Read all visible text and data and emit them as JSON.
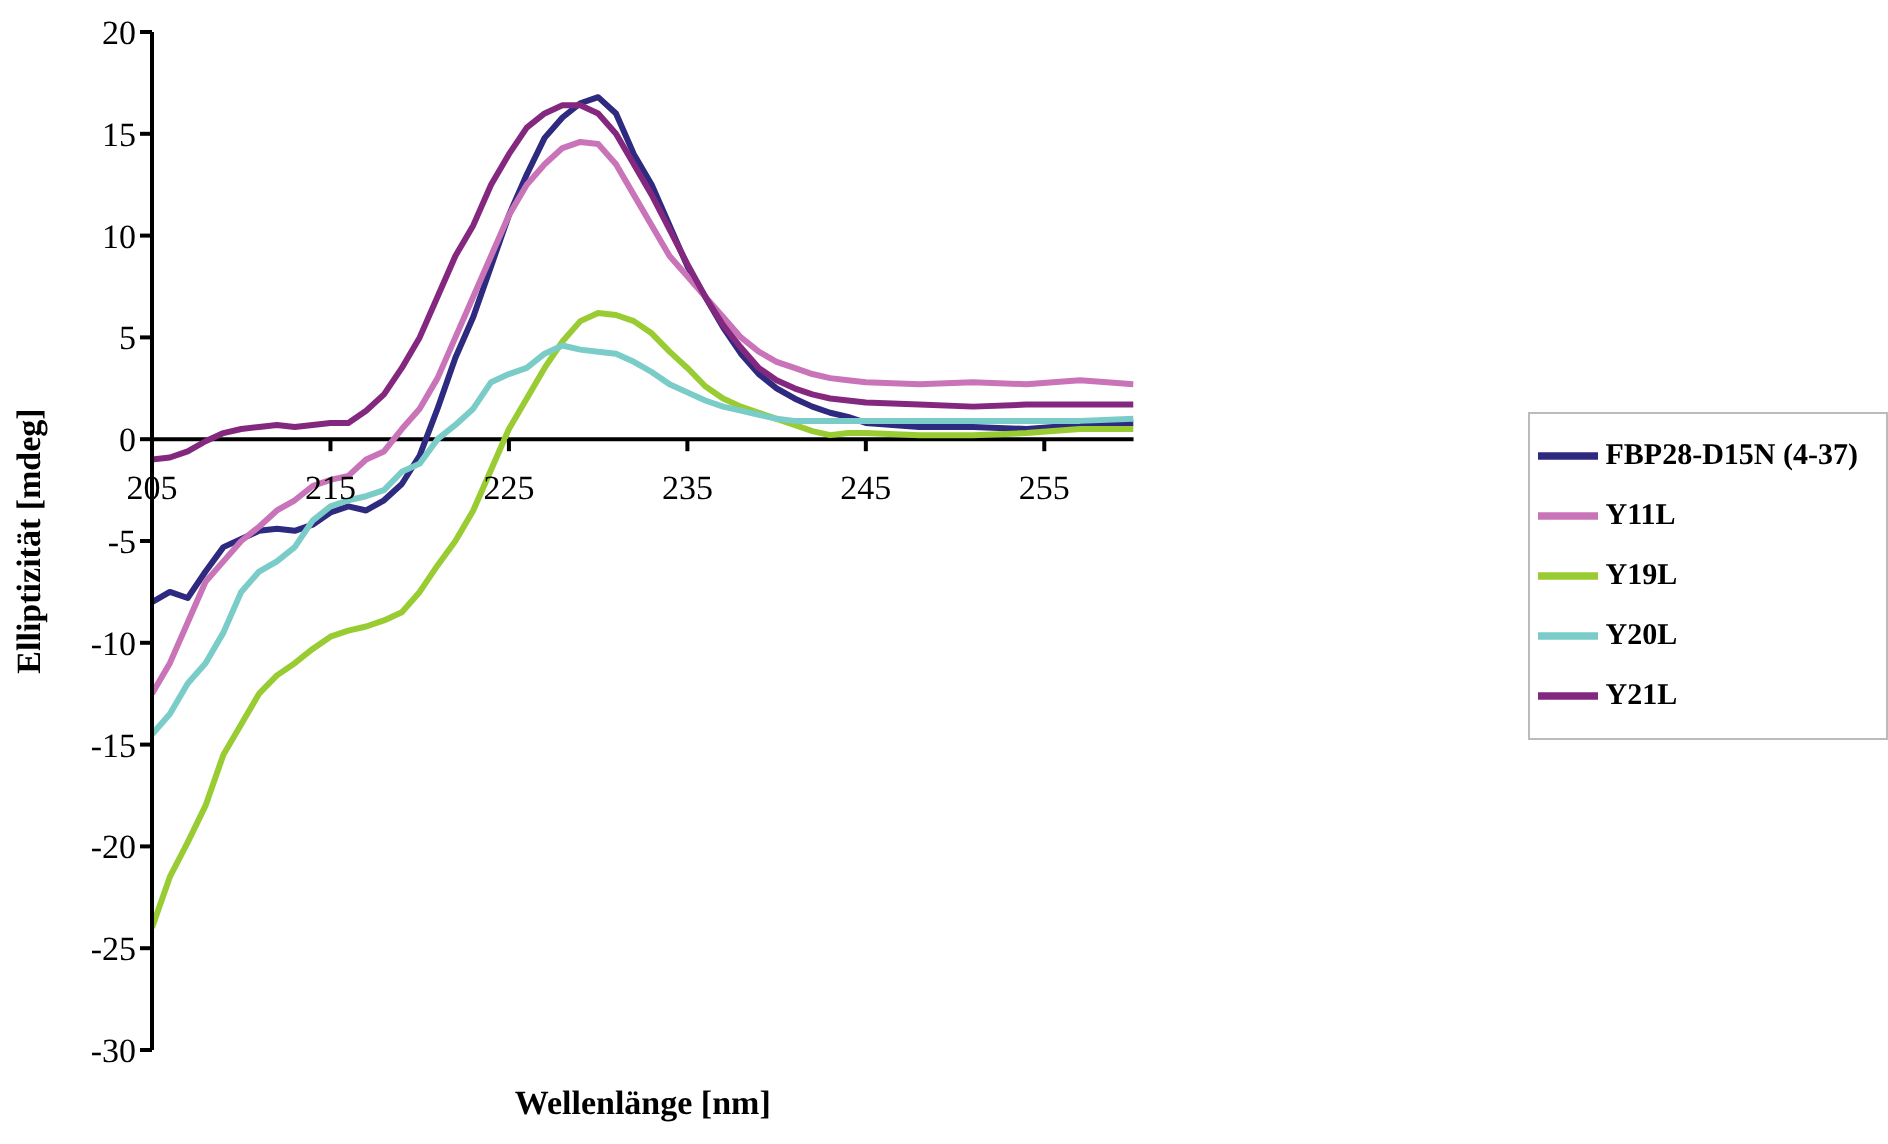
{
  "chart_data": {
    "type": "line",
    "xlabel": "Wellenlänge [nm]",
    "ylabel": "Elliptizität [mdeg]",
    "x": [
      205,
      206,
      207,
      208,
      209,
      210,
      211,
      212,
      213,
      214,
      215,
      216,
      217,
      218,
      219,
      220,
      221,
      222,
      223,
      224,
      225,
      226,
      227,
      228,
      229,
      230,
      231,
      232,
      233,
      234,
      235,
      236,
      237,
      238,
      239,
      240,
      241,
      242,
      243,
      244,
      245,
      248,
      251,
      254,
      257,
      260
    ],
    "series": [
      {
        "name": "FBP28-D15N (4-37)",
        "color": "#2e2a80",
        "values": [
          -8,
          -7.5,
          -7.8,
          -6.5,
          -5.3,
          -4.9,
          -4.5,
          -4.4,
          -4.5,
          -4.2,
          -3.6,
          -3.3,
          -3.5,
          -3,
          -2.2,
          -0.8,
          1.5,
          4,
          6,
          8.5,
          11,
          13,
          14.8,
          15.8,
          16.5,
          16.8,
          16,
          14,
          12.5,
          10.5,
          8.5,
          7,
          5.5,
          4.2,
          3.2,
          2.5,
          2,
          1.6,
          1.3,
          1.1,
          0.8,
          0.6,
          0.6,
          0.5,
          0.7,
          0.8
        ]
      },
      {
        "name": "Y11L",
        "color": "#c974b8",
        "values": [
          -12.5,
          -11,
          -9,
          -7,
          -6,
          -5,
          -4.3,
          -3.5,
          -3,
          -2.3,
          -2,
          -1.8,
          -1,
          -0.6,
          0.5,
          1.5,
          3,
          5,
          7,
          9,
          11,
          12.5,
          13.5,
          14.3,
          14.6,
          14.5,
          13.5,
          12,
          10.5,
          9,
          8,
          7,
          6,
          5,
          4.3,
          3.8,
          3.5,
          3.2,
          3,
          2.9,
          2.8,
          2.7,
          2.8,
          2.7,
          2.9,
          2.7
        ]
      },
      {
        "name": "Y19L",
        "color": "#99cc33",
        "values": [
          -24,
          -21.5,
          -19.8,
          -18,
          -15.5,
          -14,
          -12.5,
          -11.6,
          -11,
          -10.3,
          -9.7,
          -9.4,
          -9.2,
          -8.9,
          -8.5,
          -7.5,
          -6.2,
          -5,
          -3.5,
          -1.5,
          0.5,
          2,
          3.5,
          4.8,
          5.8,
          6.2,
          6.1,
          5.8,
          5.2,
          4.3,
          3.5,
          2.6,
          2,
          1.6,
          1.3,
          1,
          0.7,
          0.4,
          0.2,
          0.3,
          0.3,
          0.2,
          0.2,
          0.3,
          0.5,
          0.5
        ]
      },
      {
        "name": "Y20L",
        "color": "#7accc8",
        "values": [
          -14.5,
          -13.5,
          -12,
          -11,
          -9.5,
          -7.5,
          -6.5,
          -6,
          -5.3,
          -4,
          -3.3,
          -3,
          -2.8,
          -2.5,
          -1.6,
          -1.2,
          0,
          0.7,
          1.5,
          2.8,
          3.2,
          3.5,
          4.2,
          4.6,
          4.4,
          4.3,
          4.2,
          3.8,
          3.3,
          2.7,
          2.3,
          1.9,
          1.6,
          1.4,
          1.2,
          1,
          0.9,
          0.9,
          0.9,
          0.9,
          0.9,
          0.9,
          0.9,
          0.9,
          0.9,
          1
        ]
      },
      {
        "name": "Y21L",
        "color": "#84287f",
        "values": [
          -1,
          -0.9,
          -0.6,
          -0.1,
          0.3,
          0.5,
          0.6,
          0.7,
          0.6,
          0.7,
          0.8,
          0.8,
          1.4,
          2.2,
          3.5,
          5,
          7,
          9,
          10.5,
          12.5,
          14,
          15.3,
          16,
          16.4,
          16.4,
          16,
          15,
          13.5,
          12,
          10.3,
          8.6,
          7,
          5.6,
          4.5,
          3.5,
          2.9,
          2.5,
          2.2,
          2,
          1.9,
          1.8,
          1.7,
          1.6,
          1.7,
          1.7,
          1.7
        ]
      }
    ],
    "xlim": [
      205,
      260
    ],
    "xticks": [
      205,
      215,
      225,
      235,
      245,
      255
    ],
    "ylim": [
      -30,
      20
    ],
    "yticks": [
      -30,
      -25,
      -20,
      -15,
      -10,
      -5,
      0,
      5,
      10,
      15,
      20
    ],
    "grid": false,
    "legend": "right",
    "marker": "none",
    "line_style": "solid"
  }
}
